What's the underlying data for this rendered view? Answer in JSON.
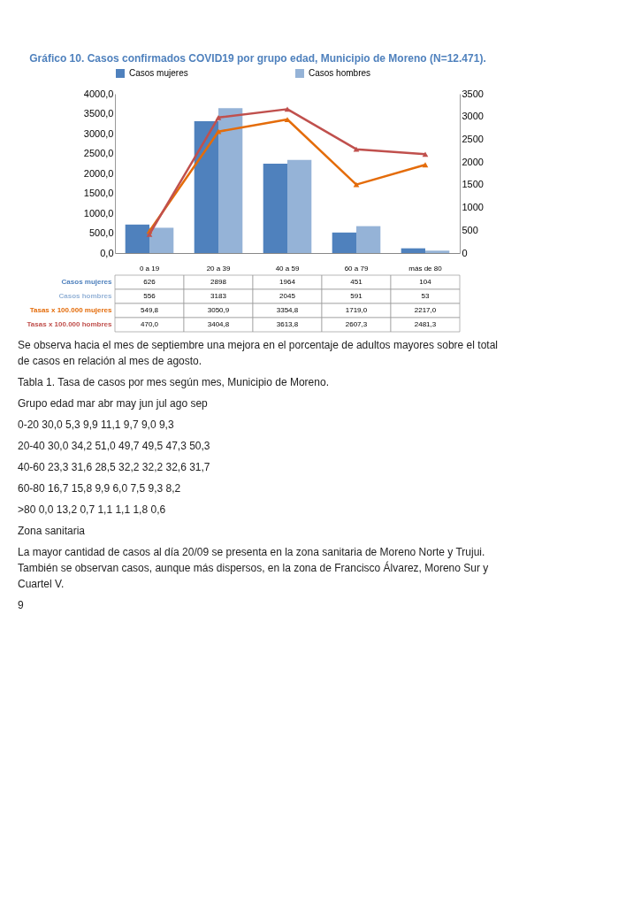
{
  "chart_data": {
    "type": "bar",
    "title": "Gráfico 10. Casos confirmados COVID19 por grupo edad, Municipio de Moreno (N=12.471).",
    "categories": [
      "0 a 19",
      "20 a 39",
      "40 a 59",
      "60 a 79",
      "más de 80"
    ],
    "series": [
      {
        "name": "Casos mujeres",
        "axis": "y2",
        "color": "#4f81bd",
        "values": [
          626,
          2898,
          1964,
          451,
          104
        ],
        "value_labels": [
          "626",
          "2898",
          "1964",
          "451",
          "104"
        ]
      },
      {
        "name": "Casos hombres",
        "axis": "y2",
        "color": "#95b3d7",
        "values": [
          556,
          3183,
          2045,
          591,
          53
        ],
        "value_labels": [
          "556",
          "3183",
          "2045",
          "591",
          "53"
        ]
      },
      {
        "name": "Tasas x 100.000 mujeres",
        "type": "line",
        "marker": "triangle",
        "color": "#e46c0a",
        "values": [
          549.8,
          3050.9,
          3354.8,
          1719.0,
          2217.0
        ],
        "value_labels": [
          "549,8",
          "3050,9",
          "3354,8",
          "1719,0",
          "2217,0"
        ]
      },
      {
        "name": "Tasas x 100.000 hombres",
        "type": "line",
        "marker": "triangle",
        "color": "#c0504d",
        "values": [
          470.0,
          3404.8,
          3613.8,
          2607.3,
          2481.3
        ],
        "value_labels": [
          "470,0",
          "3404,8",
          "3613,8",
          "2607,3",
          "2481,3"
        ]
      }
    ],
    "ylim": [
      0,
      4000
    ],
    "yticks": [
      {
        "value": 0,
        "label": "0,0"
      },
      {
        "value": 500,
        "label": "500,0"
      },
      {
        "value": 1000,
        "label": "1000,0"
      },
      {
        "value": 1500,
        "label": "1500,0"
      },
      {
        "value": 2000,
        "label": "2000,0"
      },
      {
        "value": 2500,
        "label": "2500,0"
      },
      {
        "value": 3000,
        "label": "3000,0"
      },
      {
        "value": 3500,
        "label": "3500,0"
      },
      {
        "value": 4000,
        "label": "4000,0"
      }
    ],
    "y2lim": [
      0,
      3500
    ],
    "y2ticks": [
      0,
      500,
      1000,
      1500,
      2000,
      2500,
      3000,
      3500
    ],
    "legend": "top",
    "grid": false,
    "annotations": [
      "Se observa hacia el mes de septiembre una mejora en el porcentaje de adultos mayores sobre el total de casos en relación al mes de agosto.",
      "Tabla 1. Tasa de casos por mes según mes, Municipio de Moreno.",
      "Grupo edad mar abr may jun jul ago sep",
      "0-20 30,0 5,3 9,9 11,1 9,7 9,0 9,3",
      "20-40 30,0 34,2 51,0 49,7 49,5 47,3 50,3",
      "40-60 23,3 31,6 28,5 32,2 32,2 32,6 31,7",
      "60-80 16,7 15,8 9,9 6,0 7,5 9,3 8,2",
      ">80 0,0 13,2 0,7 1,1 1,1 1,8 0,6",
      "Zona sanitaria",
      "La mayor cantidad de casos al día 20/09 se presenta en la zona sanitaria de Moreno Norte y Trujui. También se observan casos, aunque más dispersos, en la zona de Francisco Álvarez, Moreno Sur y Cuartel V.",
      "9"
    ]
  }
}
